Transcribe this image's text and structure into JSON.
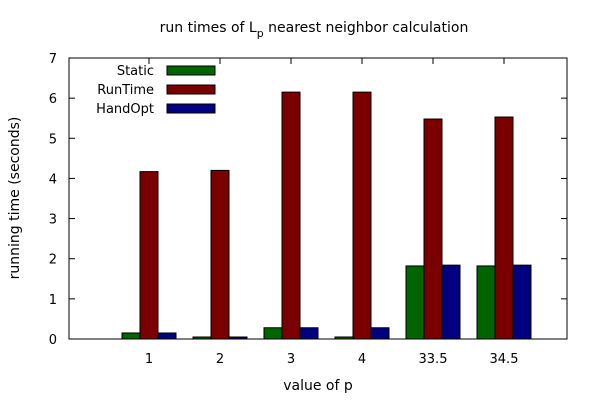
{
  "chart_data": {
    "type": "bar",
    "title": {
      "prefix": "run times of L",
      "subscript": "p",
      "suffix": " nearest neighbor calculation"
    },
    "xlabel": "value of p",
    "ylabel": "running time (seconds)",
    "categories": [
      "1",
      "2",
      "3",
      "4",
      "33.5",
      "34.5"
    ],
    "ylim": [
      0,
      7
    ],
    "yticks": [
      "0",
      "1",
      "2",
      "3",
      "4",
      "5",
      "6",
      "7"
    ],
    "grid": false,
    "legend_position": "top-left",
    "series": [
      {
        "name": "Static",
        "color": "#006400",
        "values": [
          0.15,
          0.05,
          0.28,
          0.05,
          1.82,
          1.82
        ]
      },
      {
        "name": "RunTime",
        "color": "#7a0000",
        "values": [
          4.17,
          4.2,
          6.15,
          6.15,
          5.48,
          5.53
        ]
      },
      {
        "name": "HandOpt",
        "color": "#000080",
        "values": [
          0.15,
          0.05,
          0.28,
          0.28,
          1.84,
          1.84
        ]
      }
    ]
  }
}
